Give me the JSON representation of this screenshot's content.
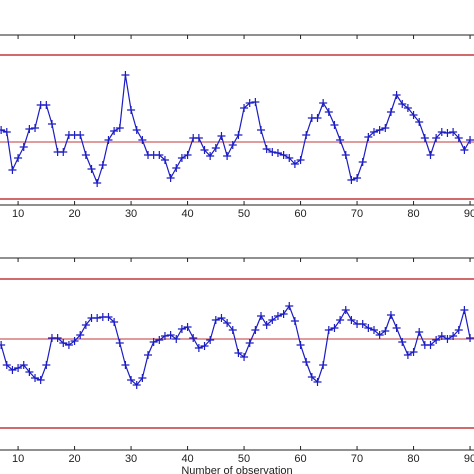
{
  "chart_data": [
    {
      "type": "line",
      "x": [
        7,
        8,
        9,
        10,
        11,
        12,
        13,
        14,
        15,
        16,
        17,
        18,
        19,
        20,
        21,
        22,
        23,
        24,
        25,
        26,
        27,
        28,
        29,
        30,
        31,
        32,
        33,
        34,
        35,
        36,
        37,
        38,
        39,
        40,
        41,
        42,
        43,
        44,
        45,
        46,
        47,
        48,
        49,
        50,
        51,
        52,
        53,
        54,
        55,
        56,
        57,
        58,
        59,
        60,
        61,
        62,
        63,
        64,
        65,
        66,
        67,
        68,
        69,
        70,
        71,
        72,
        73,
        74,
        75,
        76,
        77,
        78,
        79,
        80,
        81,
        82,
        83,
        84,
        85,
        86,
        87,
        88,
        89,
        90
      ],
      "values": [
        75,
        73,
        35,
        47,
        58,
        76,
        77,
        100,
        100,
        81,
        53,
        53,
        70,
        70,
        70,
        50,
        36,
        22,
        40,
        65,
        74,
        77,
        130,
        95,
        75,
        65,
        50,
        50,
        50,
        45,
        27,
        37,
        47,
        50,
        67,
        67,
        55,
        49,
        57,
        69,
        49,
        60,
        70,
        97,
        102,
        103,
        75,
        56,
        53,
        52,
        50,
        47,
        41,
        45,
        70,
        87,
        87,
        102,
        93,
        80,
        65,
        50,
        25,
        27,
        43,
        68,
        73,
        75,
        77,
        93,
        110,
        101,
        97,
        90,
        83,
        67,
        50,
        67,
        73,
        72,
        73,
        67,
        55,
        65
      ],
      "color": "#1c1cc4",
      "reference_lines": [
        150,
        63,
        6
      ],
      "reference_color": "#c0393b",
      "xlim": [
        6.8,
        90.7
      ],
      "xticks": [
        10,
        20,
        30,
        40,
        50,
        60,
        70,
        80,
        90
      ],
      "ylim": [
        0,
        170
      ]
    },
    {
      "type": "line",
      "x": [
        7,
        8,
        9,
        10,
        11,
        12,
        13,
        14,
        15,
        16,
        17,
        18,
        19,
        20,
        21,
        22,
        23,
        24,
        25,
        26,
        27,
        28,
        29,
        30,
        31,
        32,
        33,
        34,
        35,
        36,
        37,
        38,
        39,
        40,
        41,
        42,
        43,
        44,
        45,
        46,
        47,
        48,
        49,
        50,
        51,
        52,
        53,
        54,
        55,
        56,
        57,
        58,
        59,
        60,
        61,
        62,
        63,
        64,
        65,
        66,
        67,
        68,
        69,
        70,
        71,
        72,
        73,
        74,
        75,
        76,
        77,
        78,
        79,
        80,
        81,
        82,
        83,
        84,
        85,
        86,
        87,
        88,
        89,
        90
      ],
      "values": [
        105,
        85,
        80,
        82,
        85,
        78,
        72,
        70,
        85,
        112,
        112,
        107,
        105,
        109,
        115,
        125,
        132,
        132,
        133,
        133,
        128,
        107,
        85,
        70,
        65,
        72,
        95,
        108,
        110,
        114,
        115,
        111,
        121,
        123,
        112,
        102,
        104,
        110,
        130,
        132,
        127,
        120,
        97,
        93,
        107,
        120,
        134,
        125,
        130,
        134,
        136,
        144,
        129,
        105,
        88,
        73,
        68,
        85,
        120,
        122,
        130,
        140,
        130,
        126,
        126,
        122,
        120,
        115,
        119,
        135,
        122,
        108,
        95,
        98,
        118,
        105,
        105,
        110,
        114,
        111,
        114,
        120,
        140,
        112
      ],
      "color": "#1c1cc4",
      "reference_lines": [
        171,
        111,
        22
      ],
      "reference_color": "#c0393b",
      "xlim": [
        6.8,
        90.7
      ],
      "xticks": [
        10,
        20,
        30,
        40,
        50,
        60,
        70,
        80,
        90
      ],
      "ylim": [
        0,
        192
      ],
      "x_label": "Number of observation"
    }
  ]
}
